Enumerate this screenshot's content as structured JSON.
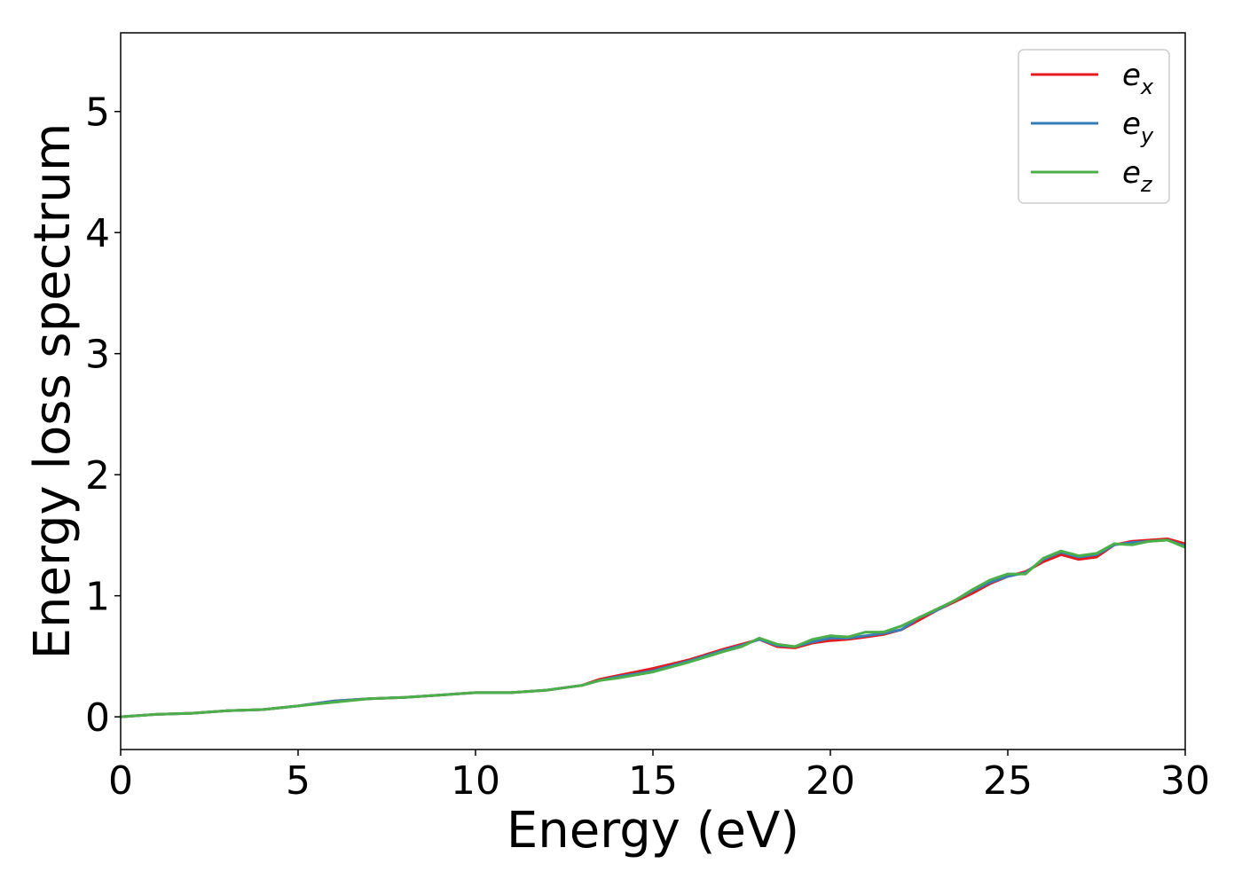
{
  "chart_data": {
    "type": "line",
    "xlabel": "Energy (eV)",
    "ylabel": "Energy loss spectrum",
    "xlim": [
      0,
      30
    ],
    "ylim": [
      -0.27,
      5.65
    ],
    "xticks": [
      0,
      5,
      10,
      15,
      20,
      25,
      30
    ],
    "yticks": [
      0,
      1,
      2,
      3,
      4,
      5
    ],
    "grid": false,
    "legend_position": "top-right",
    "x": [
      0,
      1,
      2,
      3,
      4,
      5,
      6,
      7,
      8,
      9,
      10,
      11,
      12,
      13,
      13.5,
      14,
      15,
      16,
      17,
      17.5,
      18,
      18.5,
      19,
      19.5,
      20,
      20.5,
      21,
      21.5,
      22,
      22.5,
      23,
      23.5,
      24,
      24.5,
      25,
      25.5,
      26,
      26.5,
      27,
      27.5,
      28,
      28.5,
      29,
      29.5,
      30
    ],
    "series": [
      {
        "name": "e",
        "subscript": "x",
        "color": "#e41a1c",
        "values": [
          0.0,
          0.02,
          0.03,
          0.05,
          0.06,
          0.09,
          0.13,
          0.15,
          0.16,
          0.18,
          0.2,
          0.2,
          0.22,
          0.26,
          0.31,
          0.34,
          0.4,
          0.47,
          0.56,
          0.6,
          0.64,
          0.58,
          0.57,
          0.61,
          0.63,
          0.64,
          0.66,
          0.68,
          0.72,
          0.8,
          0.88,
          0.95,
          1.02,
          1.1,
          1.16,
          1.2,
          1.28,
          1.34,
          1.3,
          1.32,
          1.42,
          1.45,
          1.46,
          1.47,
          1.43
        ]
      },
      {
        "name": "e",
        "subscript": "y",
        "color": "#377eb8",
        "values": [
          0.0,
          0.02,
          0.03,
          0.05,
          0.06,
          0.09,
          0.13,
          0.15,
          0.16,
          0.18,
          0.2,
          0.2,
          0.22,
          0.26,
          0.3,
          0.33,
          0.38,
          0.46,
          0.55,
          0.59,
          0.64,
          0.59,
          0.58,
          0.62,
          0.65,
          0.65,
          0.67,
          0.69,
          0.72,
          0.82,
          0.88,
          0.96,
          1.04,
          1.11,
          1.16,
          1.19,
          1.3,
          1.36,
          1.32,
          1.34,
          1.42,
          1.44,
          1.45,
          1.46,
          1.41
        ]
      },
      {
        "name": "e",
        "subscript": "z",
        "color": "#4daf4a",
        "values": [
          0.0,
          0.02,
          0.03,
          0.05,
          0.06,
          0.09,
          0.12,
          0.15,
          0.16,
          0.18,
          0.2,
          0.2,
          0.22,
          0.26,
          0.3,
          0.32,
          0.37,
          0.45,
          0.54,
          0.58,
          0.65,
          0.6,
          0.58,
          0.64,
          0.67,
          0.66,
          0.7,
          0.7,
          0.75,
          0.82,
          0.89,
          0.96,
          1.05,
          1.13,
          1.18,
          1.18,
          1.31,
          1.37,
          1.33,
          1.35,
          1.43,
          1.42,
          1.45,
          1.46,
          1.4
        ]
      }
    ]
  }
}
